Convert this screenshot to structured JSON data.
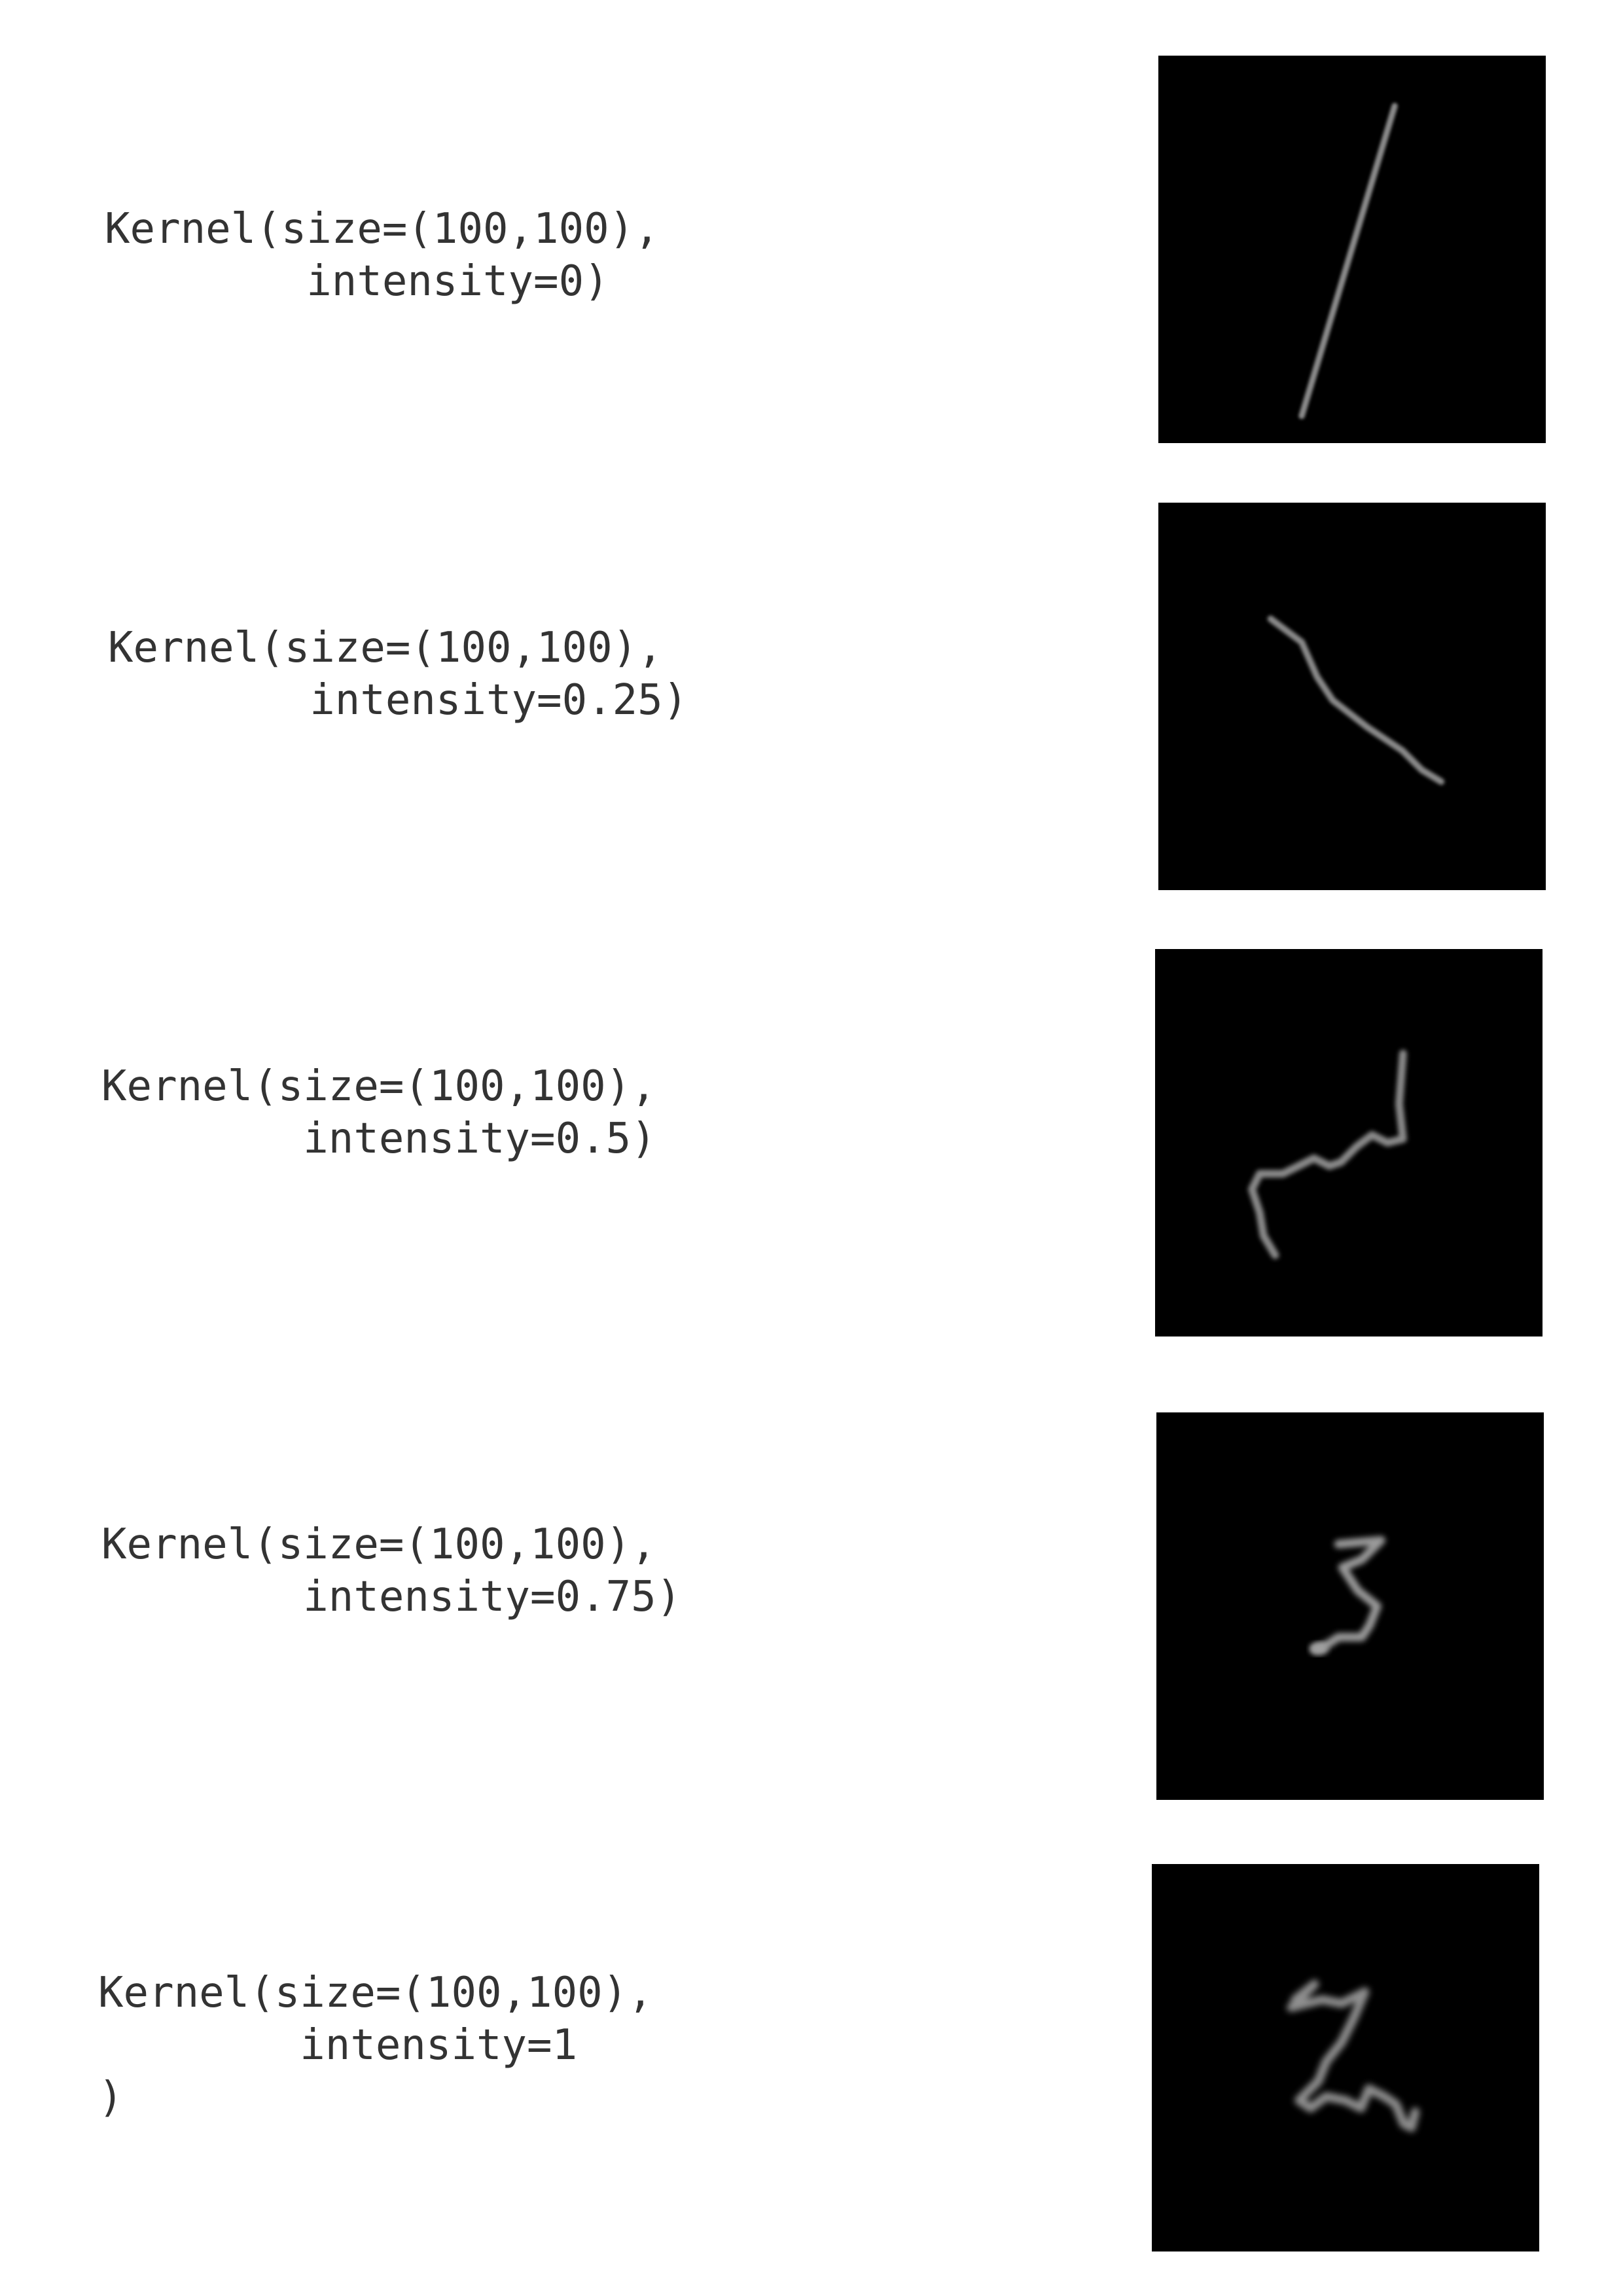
{
  "panels": [
    {
      "label": "Kernel(size=(100,100),\n        intensity=0)"
    },
    {
      "label": "Kernel(size=(100,100),\n        intensity=0.25)"
    },
    {
      "label": "Kernel(size=(100,100),\n        intensity=0.5)"
    },
    {
      "label": "Kernel(size=(100,100),\n        intensity=0.75)"
    },
    {
      "label": "Kernel(size=(100,100),\n        intensity=1\n)"
    }
  ],
  "colors": {
    "page_background": "#ffffff",
    "kernel_background": "#000000",
    "kernel_stroke": "#8a8a8a",
    "label_text": "#333333"
  }
}
